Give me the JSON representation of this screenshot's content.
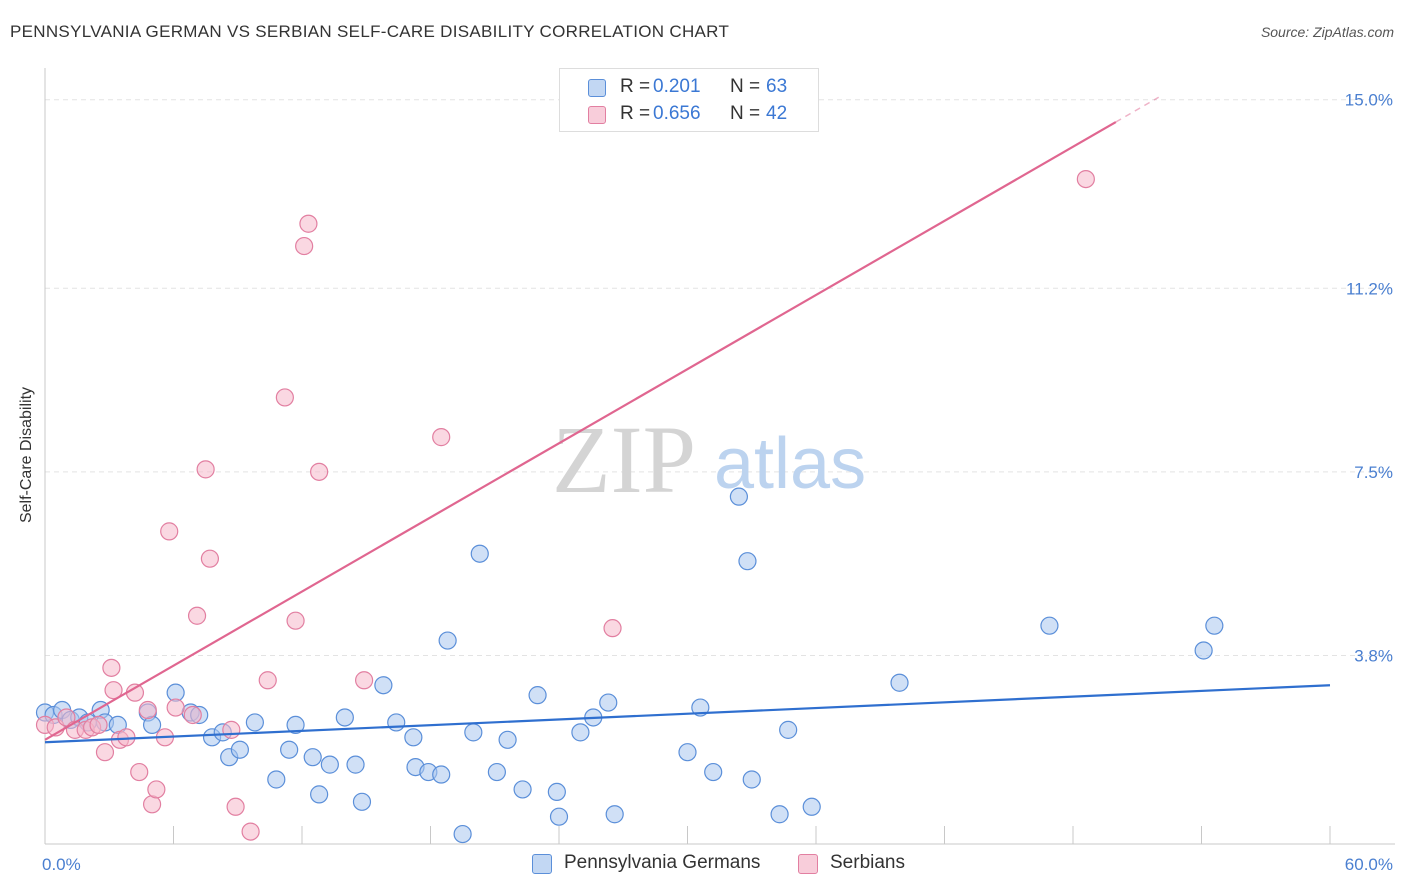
{
  "title": "PENNSYLVANIA GERMAN VS SERBIAN SELF-CARE DISABILITY CORRELATION CHART",
  "source": "Source: ZipAtlas.com",
  "watermark": {
    "zip": "ZIP",
    "atlas": "atlas"
  },
  "colors": {
    "blue": "#5b8fd9",
    "blue_fill": "#a9c6ee",
    "blue_line": "#2f6fcf",
    "pink": "#e27fa1",
    "pink_fill": "#f5b8cb",
    "pink_line": "#e06690",
    "tick_text": "#4a7fd0",
    "grid": "#e3e3e3"
  },
  "legend": {
    "r_label": "R =",
    "n_label": "N =",
    "blue": {
      "r": "0.201",
      "n": "63"
    },
    "pink": {
      "r": "0.656",
      "n": "42"
    }
  },
  "chart_data": {
    "type": "scatter",
    "title": "PENNSYLVANIA GERMAN VS SERBIAN SELF-CARE DISABILITY CORRELATION CHART",
    "xlabel": "",
    "ylabel": "Self-Care Disability",
    "xlim": [
      0,
      60
    ],
    "ylim": [
      0,
      15.8
    ],
    "x_tick_labels": [
      "0.0%",
      "60.0%"
    ],
    "y_ticks": [
      3.8,
      7.5,
      11.2,
      15.0
    ],
    "y_tick_labels": [
      "3.8%",
      "7.5%",
      "11.2%",
      "15.0%"
    ],
    "grid": true,
    "legend_position": "top-center",
    "series": [
      {
        "name": "Pennsylvania Germans",
        "color": "blue",
        "trend": {
          "x0": 0,
          "y0": 2.05,
          "x1": 60,
          "y1": 3.2
        },
        "points": [
          [
            0.0,
            2.65
          ],
          [
            0.4,
            2.6
          ],
          [
            0.8,
            2.7
          ],
          [
            1.2,
            2.5
          ],
          [
            1.6,
            2.55
          ],
          [
            2.0,
            2.45
          ],
          [
            2.6,
            2.7
          ],
          [
            2.8,
            2.45
          ],
          [
            3.4,
            2.4
          ],
          [
            4.8,
            2.65
          ],
          [
            5.0,
            2.4
          ],
          [
            6.1,
            3.05
          ],
          [
            6.8,
            2.65
          ],
          [
            7.2,
            2.6
          ],
          [
            7.8,
            2.15
          ],
          [
            8.3,
            2.25
          ],
          [
            8.6,
            1.75
          ],
          [
            9.1,
            1.9
          ],
          [
            9.8,
            2.45
          ],
          [
            10.8,
            1.3
          ],
          [
            11.4,
            1.9
          ],
          [
            11.7,
            2.4
          ],
          [
            12.5,
            1.75
          ],
          [
            12.8,
            1.0
          ],
          [
            13.3,
            1.6
          ],
          [
            14.0,
            2.55
          ],
          [
            14.5,
            1.6
          ],
          [
            14.8,
            0.85
          ],
          [
            15.8,
            3.2
          ],
          [
            16.4,
            2.45
          ],
          [
            17.2,
            2.15
          ],
          [
            17.3,
            1.55
          ],
          [
            17.9,
            1.45
          ],
          [
            18.5,
            1.4
          ],
          [
            18.8,
            4.1
          ],
          [
            19.5,
            0.2
          ],
          [
            20.0,
            2.25
          ],
          [
            20.3,
            5.85
          ],
          [
            21.1,
            1.45
          ],
          [
            21.6,
            2.1
          ],
          [
            22.3,
            1.1
          ],
          [
            23.0,
            3.0
          ],
          [
            23.9,
            1.05
          ],
          [
            24.0,
            0.55
          ],
          [
            25.0,
            2.25
          ],
          [
            25.6,
            2.55
          ],
          [
            26.3,
            2.85
          ],
          [
            26.6,
            0.6
          ],
          [
            30.0,
            1.85
          ],
          [
            30.6,
            2.75
          ],
          [
            31.2,
            1.45
          ],
          [
            32.4,
            7.0
          ],
          [
            32.8,
            5.7
          ],
          [
            33.0,
            1.3
          ],
          [
            34.3,
            0.6
          ],
          [
            34.7,
            2.3
          ],
          [
            35.8,
            0.75
          ],
          [
            39.9,
            3.25
          ],
          [
            46.9,
            4.4
          ],
          [
            54.1,
            3.9
          ],
          [
            54.6,
            4.4
          ]
        ]
      },
      {
        "name": "Serbians",
        "color": "pink",
        "trend": {
          "x0": 0,
          "y0": 2.1,
          "x1": 50,
          "y1": 14.55
        },
        "trend_dashed_end": {
          "x": 52,
          "y": 15.05
        },
        "points": [
          [
            0.0,
            2.4
          ],
          [
            0.5,
            2.35
          ],
          [
            1.0,
            2.55
          ],
          [
            1.4,
            2.3
          ],
          [
            1.9,
            2.3
          ],
          [
            2.2,
            2.35
          ],
          [
            2.5,
            2.4
          ],
          [
            2.8,
            1.85
          ],
          [
            3.1,
            3.55
          ],
          [
            3.2,
            3.1
          ],
          [
            3.5,
            2.1
          ],
          [
            3.8,
            2.15
          ],
          [
            4.2,
            3.05
          ],
          [
            4.4,
            1.45
          ],
          [
            4.8,
            2.7
          ],
          [
            5.0,
            0.8
          ],
          [
            5.2,
            1.1
          ],
          [
            5.6,
            2.15
          ],
          [
            5.8,
            6.3
          ],
          [
            6.1,
            2.75
          ],
          [
            6.9,
            2.6
          ],
          [
            7.1,
            4.6
          ],
          [
            7.5,
            7.55
          ],
          [
            7.7,
            5.75
          ],
          [
            8.7,
            2.3
          ],
          [
            8.9,
            0.75
          ],
          [
            9.6,
            0.25
          ],
          [
            10.4,
            3.3
          ],
          [
            11.2,
            9.0
          ],
          [
            11.7,
            4.5
          ],
          [
            12.1,
            12.05
          ],
          [
            12.3,
            12.5
          ],
          [
            12.8,
            7.5
          ],
          [
            14.9,
            3.3
          ],
          [
            18.5,
            8.2
          ],
          [
            26.5,
            4.35
          ],
          [
            48.6,
            13.4
          ]
        ]
      }
    ]
  }
}
